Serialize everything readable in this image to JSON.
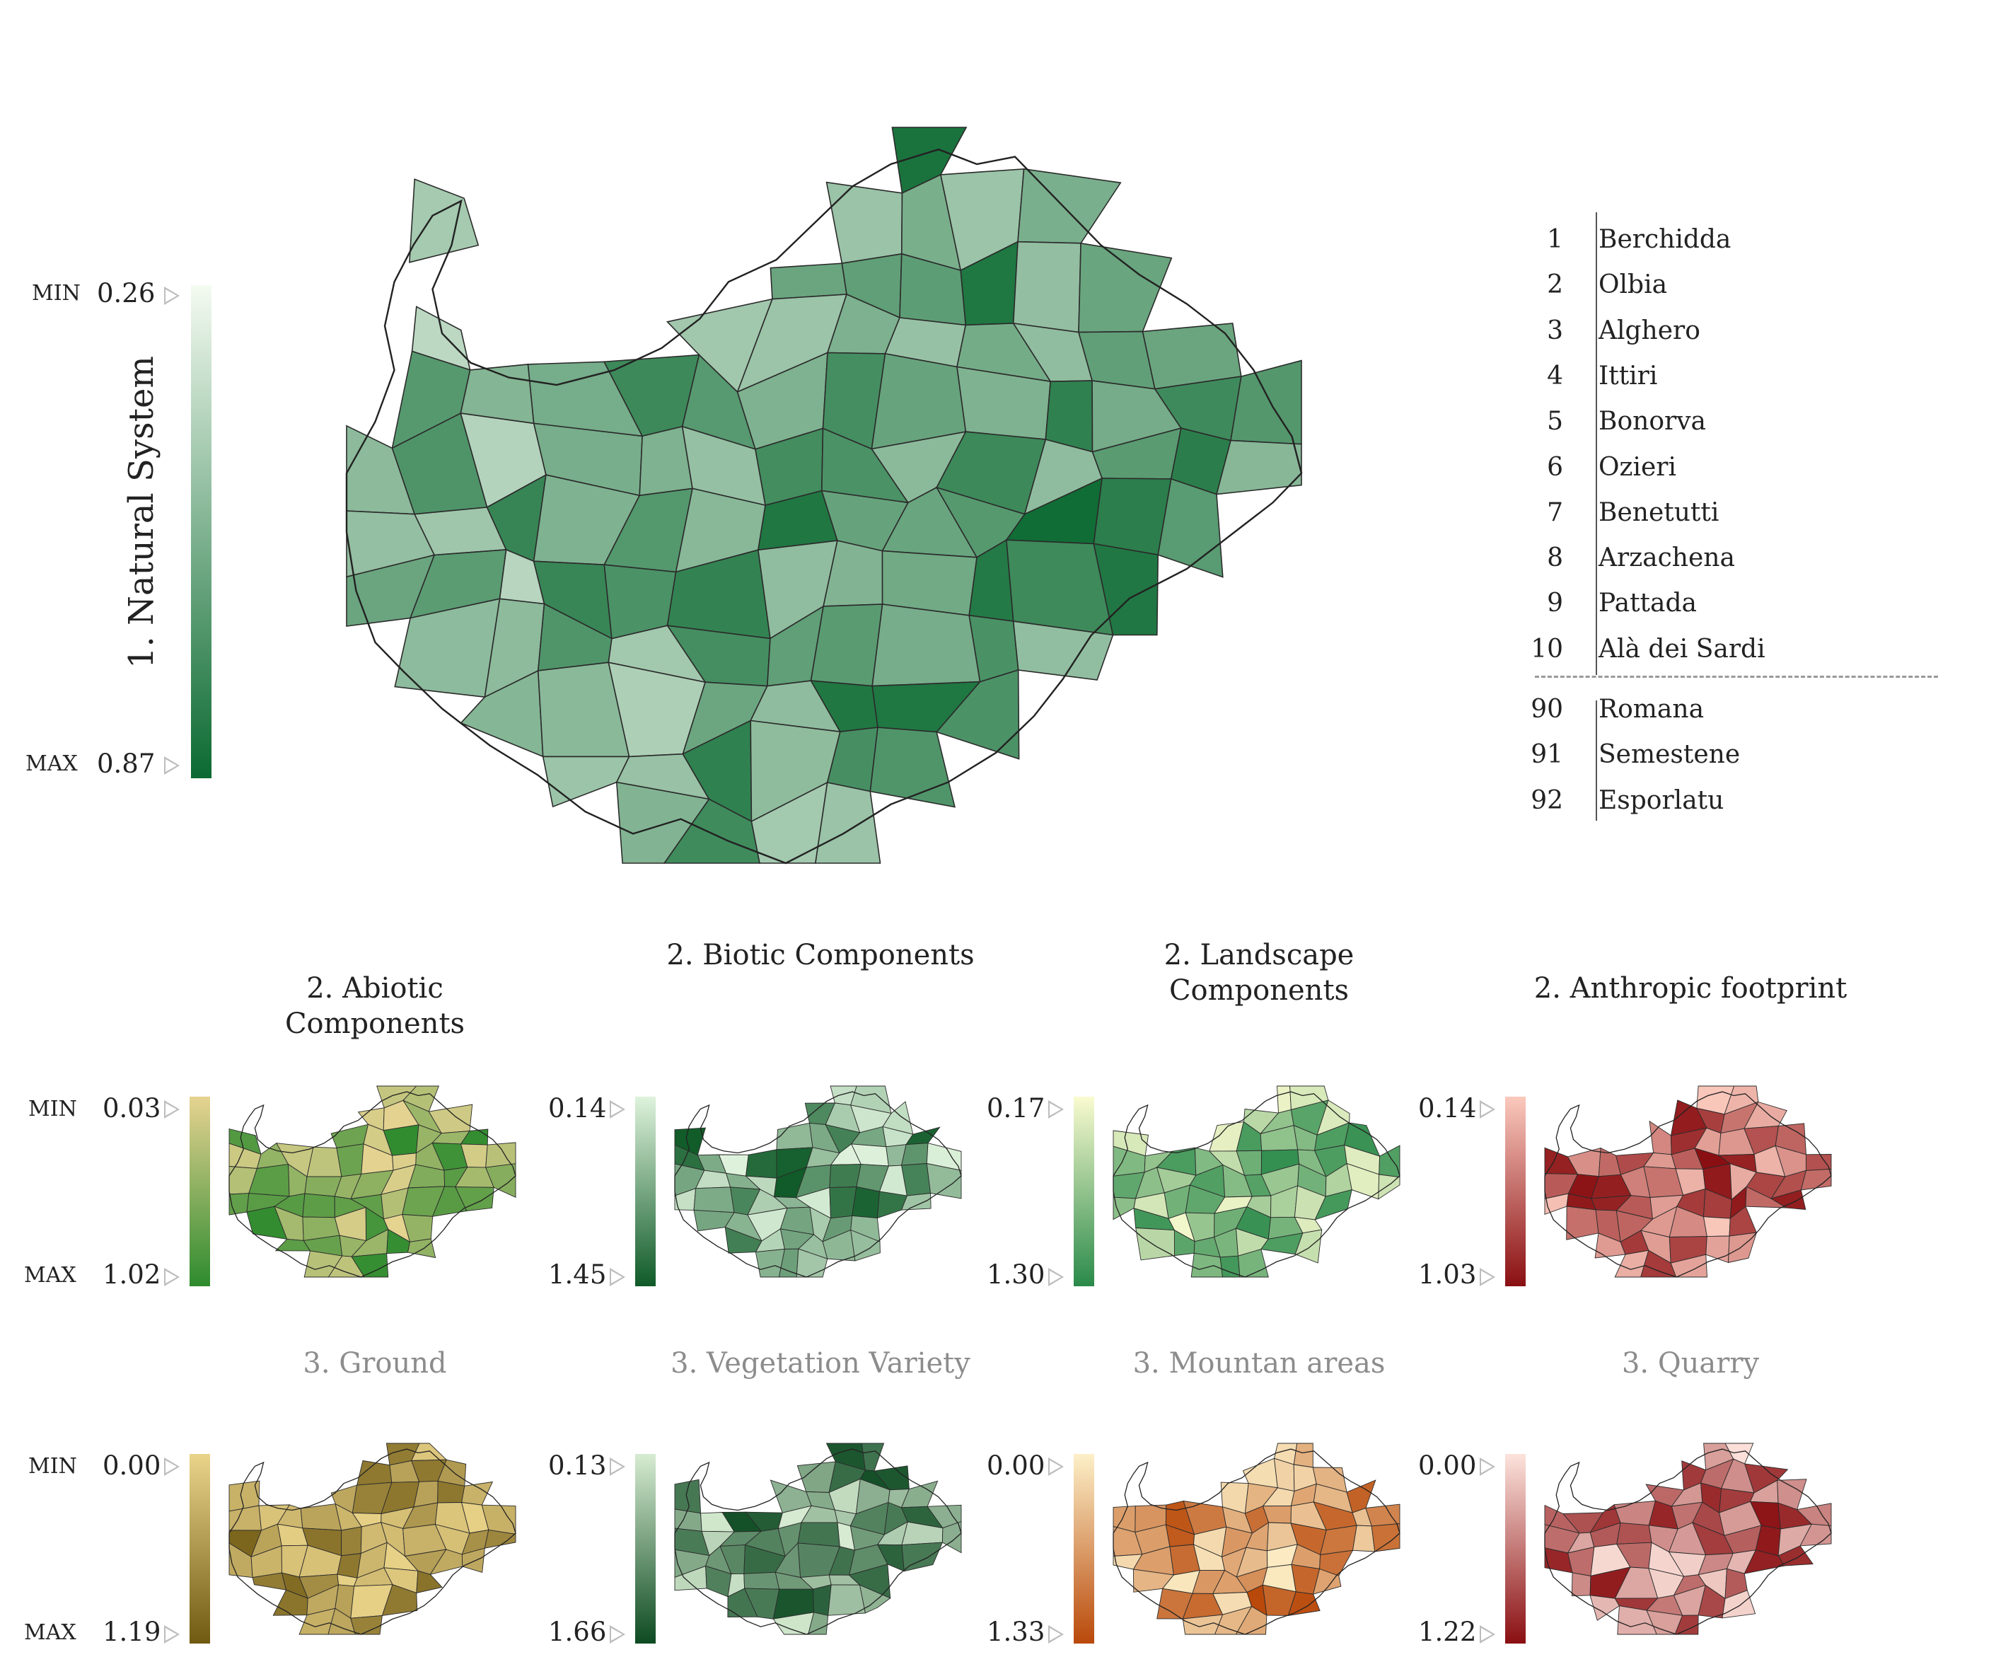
{
  "main_map": {
    "axis_label": "1. Natural System",
    "min_tag": "MIN",
    "max_tag": "MAX",
    "min_value": "0.26",
    "max_value": "0.87",
    "color_light": "#f4fbf1",
    "color_dark": "#0b6a31"
  },
  "ranking": {
    "top": [
      {
        "rank": "1",
        "name": "Berchidda"
      },
      {
        "rank": "2",
        "name": "Olbia"
      },
      {
        "rank": "3",
        "name": "Alghero"
      },
      {
        "rank": "4",
        "name": "Ittiri"
      },
      {
        "rank": "5",
        "name": "Bonorva"
      },
      {
        "rank": "6",
        "name": "Ozieri"
      },
      {
        "rank": "7",
        "name": "Benetutti"
      },
      {
        "rank": "8",
        "name": "Arzachena"
      },
      {
        "rank": "9",
        "name": "Pattada"
      },
      {
        "rank": "10",
        "name": "Alà dei Sardi"
      }
    ],
    "bottom": [
      {
        "rank": "90",
        "name": "Romana"
      },
      {
        "rank": "91",
        "name": "Semestene"
      },
      {
        "rank": "92",
        "name": "Esporlatu"
      }
    ]
  },
  "level2": [
    {
      "title": "2. Abiotic Components",
      "min": "0.03",
      "max": "1.02",
      "show_tags": true,
      "color_light": "#e6d391",
      "color_dark": "#2e8b2e"
    },
    {
      "title": "2. Biotic Components",
      "min": "0.14",
      "max": "1.45",
      "show_tags": false,
      "color_light": "#dff3dc",
      "color_dark": "#0f5a28"
    },
    {
      "title": "2. Landscape Components",
      "min": "0.17",
      "max": "1.30",
      "show_tags": false,
      "color_light": "#fafbd0",
      "color_dark": "#2a8a4a"
    },
    {
      "title": "2. Anthropic footprint",
      "min": "0.14",
      "max": "1.03",
      "show_tags": false,
      "color_light": "#fbc9bd",
      "color_dark": "#8a0f12"
    }
  ],
  "level3": [
    {
      "title": "3. Ground",
      "min": "0.00",
      "max": "1.19",
      "show_tags": true,
      "color_light": "#ead48a",
      "color_dark": "#705a12"
    },
    {
      "title": "3. Vegetation Variety",
      "min": "0.13",
      "max": "1.66",
      "show_tags": false,
      "color_light": "#d7ecd2",
      "color_dark": "#0d4a22"
    },
    {
      "title": "3. Mountan areas",
      "min": "0.00",
      "max": "1.33",
      "show_tags": false,
      "color_light": "#fdf0c8",
      "color_dark": "#b9490a"
    },
    {
      "title": "3. Quarry",
      "min": "0.00",
      "max": "1.22",
      "show_tags": false,
      "color_light": "#fde3dc",
      "color_dark": "#8a0f12"
    }
  ],
  "small_tags": {
    "min": "MIN",
    "max": "MAX"
  }
}
